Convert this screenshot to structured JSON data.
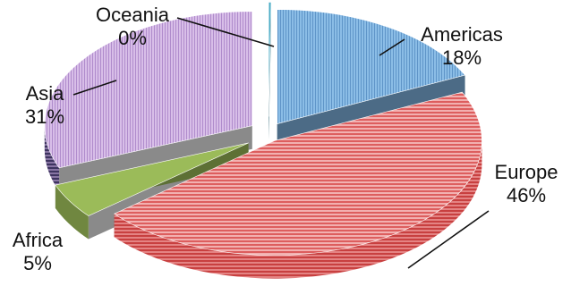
{
  "chart_data": {
    "type": "pie",
    "variant": "3d-exploded",
    "title": "",
    "categories": [
      "Americas",
      "Europe",
      "Africa",
      "Asia",
      "Oceania"
    ],
    "values": [
      18,
      46,
      5,
      31,
      0
    ],
    "value_labels": [
      "18%",
      "46%",
      "5%",
      "31%",
      "0%"
    ],
    "colors": {
      "Americas": "#7fb2e0",
      "Europe": "#e06868",
      "Africa": "#9bbb59",
      "Asia": "#c9a6dc",
      "Oceania": "#4bacc6"
    },
    "legend": "none",
    "labels_position": "outside-with-leaders"
  }
}
